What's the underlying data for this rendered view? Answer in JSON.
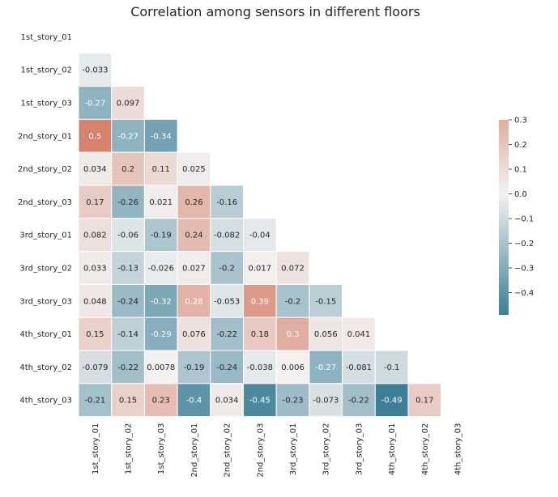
{
  "chart_data": {
    "type": "heatmap",
    "title": "Correlation among sensors in different floors",
    "xlabel": "",
    "ylabel": "",
    "labels": [
      "1st_story_01",
      "1st_story_02",
      "1st_story_03",
      "2nd_story_01",
      "2nd_story_02",
      "2nd_story_03",
      "3rd_story_01",
      "3rd_story_02",
      "3rd_story_03",
      "4th_story_01",
      "4th_story_02",
      "4th_story_03"
    ],
    "mask": "upper-triangle-including-diagonal",
    "rows": [
      [],
      [
        "-0.033"
      ],
      [
        "-0.27",
        "0.097"
      ],
      [
        "0.5",
        "-0.27",
        "-0.34"
      ],
      [
        "0.034",
        "0.2",
        "0.11",
        "0.025"
      ],
      [
        "0.17",
        "-0.26",
        "0.021",
        "0.26",
        "-0.16"
      ],
      [
        "0.082",
        "-0.06",
        "-0.19",
        "0.24",
        "-0.082",
        "-0.04"
      ],
      [
        "0.033",
        "-0.13",
        "-0.026",
        "0.027",
        "-0.2",
        "0.017",
        "0.072"
      ],
      [
        "0.048",
        "-0.24",
        "-0.32",
        "0.28",
        "-0.053",
        "0.39",
        "-0.2",
        "-0.15"
      ],
      [
        "0.15",
        "-0.14",
        "-0.29",
        "0.076",
        "-0.22",
        "0.18",
        "0.3",
        "0.056",
        "0.041"
      ],
      [
        "-0.079",
        "-0.22",
        "0.0078",
        "-0.19",
        "-0.24",
        "-0.038",
        "0.006",
        "-0.27",
        "-0.081",
        "-0.1"
      ],
      [
        "-0.21",
        "0.15",
        "0.23",
        "-0.4",
        "0.034",
        "-0.45",
        "-0.23",
        "-0.073",
        "-0.22",
        "-0.49",
        "0.17"
      ]
    ],
    "colorbar": {
      "vmin": -0.49,
      "vmax": 0.3,
      "ticks": [
        "0.3",
        "0.2",
        "0.1",
        "0.0",
        "−0.1",
        "−0.2",
        "−0.3",
        "−0.4"
      ],
      "tick_values": [
        0.3,
        0.2,
        0.1,
        0.0,
        -0.1,
        -0.2,
        -0.3,
        -0.4
      ],
      "colors": {
        "negative": "#3d7f97",
        "center": "#f2f2f2",
        "positive": "#d6826c"
      }
    },
    "grid": false,
    "legend": "colorbar-right"
  }
}
